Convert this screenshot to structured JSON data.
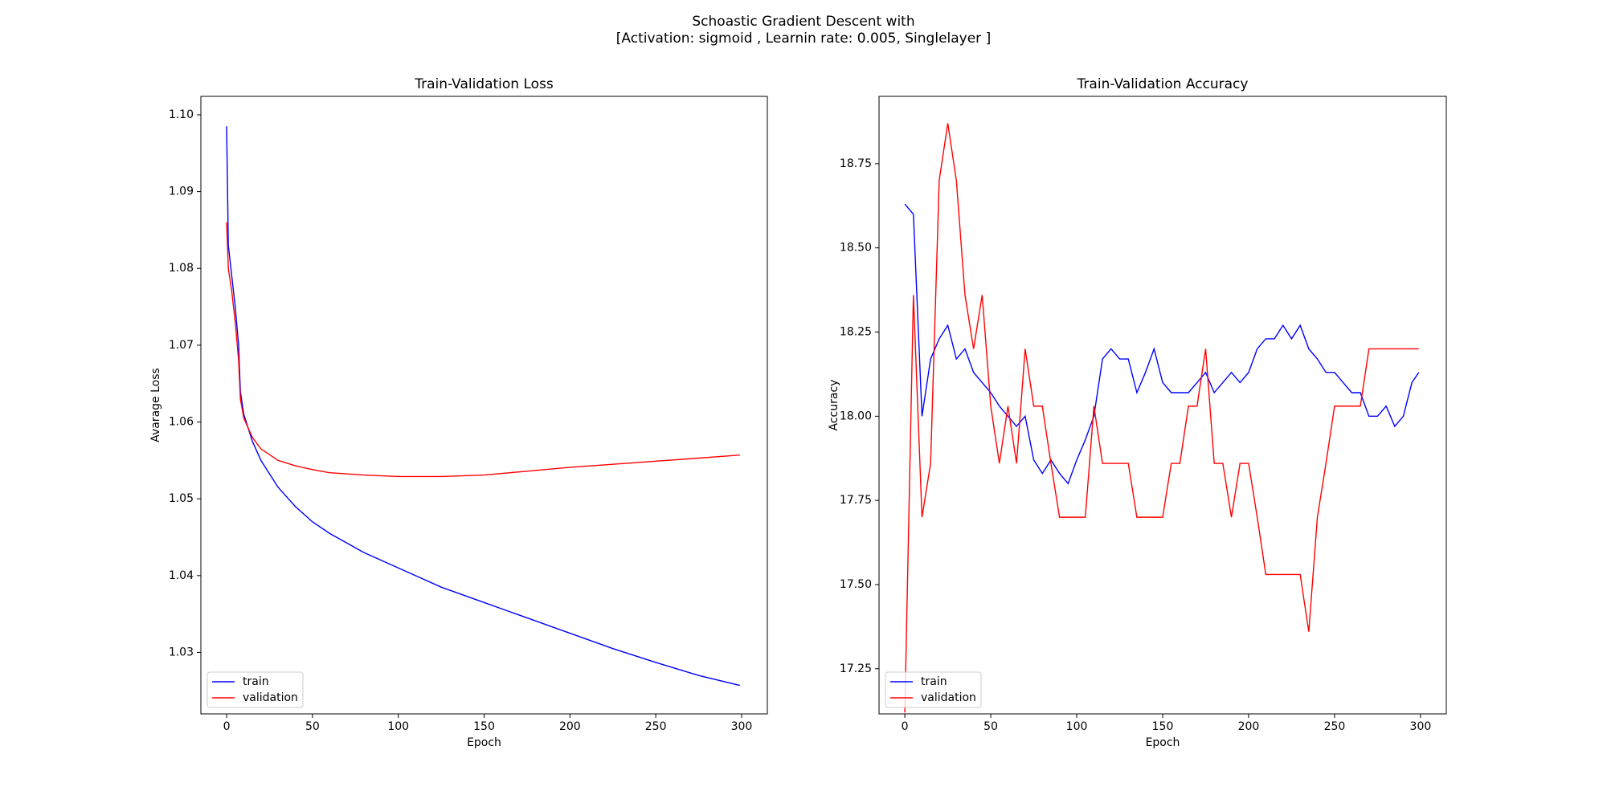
{
  "title": [
    "Schoastic Gradient Descent with",
    "[Activation: sigmoid , Learnin rate: 0.005, Singlelayer ]"
  ],
  "chart_data": [
    {
      "type": "line",
      "title": "Train-Validation Loss",
      "xlabel": "Epoch",
      "ylabel": "Avarage Loss",
      "x": [
        0,
        1,
        3,
        5,
        7,
        8,
        10,
        15,
        20,
        30,
        40,
        50,
        60,
        80,
        100,
        125,
        150,
        175,
        200,
        225,
        250,
        275,
        299
      ],
      "series": [
        {
          "name": "train",
          "color": "#0000ff",
          "values": [
            1.0985,
            1.083,
            1.079,
            1.075,
            1.07,
            1.064,
            1.061,
            1.0575,
            1.055,
            1.0515,
            1.049,
            1.047,
            1.0455,
            1.043,
            1.041,
            1.0385,
            1.0365,
            1.0345,
            1.0325,
            1.0305,
            1.0287,
            1.027,
            1.0257
          ]
        },
        {
          "name": "validation",
          "color": "#ff0000",
          "values": [
            1.086,
            1.08,
            1.077,
            1.073,
            1.068,
            1.063,
            1.0605,
            1.058,
            1.0565,
            1.055,
            1.0543,
            1.0538,
            1.0534,
            1.0531,
            1.0529,
            1.0529,
            1.0531,
            1.0536,
            1.0541,
            1.0545,
            1.0549,
            1.0553,
            1.0557
          ]
        }
      ],
      "xlim": [
        -15,
        315
      ],
      "xticks": [
        0,
        50,
        100,
        150,
        200,
        250,
        300
      ],
      "ylim": [
        1.022,
        1.1024
      ],
      "yticks": [
        1.03,
        1.04,
        1.05,
        1.06,
        1.07,
        1.08,
        1.09,
        {
          "value": 1.1,
          "label": "1.10"
        }
      ],
      "legend": "lower left"
    },
    {
      "type": "line",
      "title": "Train-Validation Accuracy",
      "xlabel": "Epoch",
      "ylabel": "Accuracy",
      "x": [
        0,
        5,
        10,
        15,
        20,
        25,
        30,
        35,
        40,
        45,
        50,
        55,
        60,
        65,
        70,
        75,
        80,
        85,
        90,
        95,
        100,
        105,
        110,
        115,
        120,
        125,
        130,
        135,
        140,
        145,
        150,
        155,
        160,
        165,
        170,
        175,
        180,
        185,
        190,
        195,
        200,
        205,
        210,
        215,
        220,
        225,
        230,
        235,
        240,
        245,
        250,
        255,
        260,
        265,
        270,
        275,
        280,
        285,
        290,
        295,
        299
      ],
      "series": [
        {
          "name": "train",
          "color": "#0000ff",
          "values": [
            18.63,
            18.6,
            18.0,
            18.17,
            18.23,
            18.27,
            18.17,
            18.2,
            18.13,
            18.1,
            18.07,
            18.03,
            18.0,
            17.97,
            18.0,
            17.87,
            17.83,
            17.87,
            17.83,
            17.8,
            17.87,
            17.93,
            18.0,
            18.17,
            18.2,
            18.17,
            18.17,
            18.07,
            18.13,
            18.2,
            18.1,
            18.07,
            18.07,
            18.07,
            18.1,
            18.13,
            18.07,
            18.1,
            18.13,
            18.1,
            18.13,
            18.2,
            18.23,
            18.23,
            18.27,
            18.23,
            18.27,
            18.2,
            18.17,
            18.13,
            18.13,
            18.1,
            18.07,
            18.07,
            18.0,
            18.0,
            18.03,
            17.97,
            18.0,
            18.1,
            18.13
          ]
        },
        {
          "name": "validation",
          "color": "#ff0000",
          "values": [
            17.12,
            18.36,
            17.7,
            17.86,
            18.7,
            18.87,
            18.7,
            18.36,
            18.2,
            18.36,
            18.03,
            17.86,
            18.03,
            17.86,
            18.2,
            18.03,
            18.03,
            17.86,
            17.7,
            17.7,
            17.7,
            17.7,
            18.03,
            17.86,
            17.86,
            17.86,
            17.86,
            17.7,
            17.7,
            17.7,
            17.7,
            17.86,
            17.86,
            18.03,
            18.03,
            18.2,
            17.86,
            17.86,
            17.7,
            17.86,
            17.86,
            17.7,
            17.53,
            17.53,
            17.53,
            17.53,
            17.53,
            17.36,
            17.7,
            17.86,
            18.03,
            18.03,
            18.03,
            18.03,
            18.2,
            18.2,
            18.2,
            18.2,
            18.2,
            18.2,
            18.2
          ]
        }
      ],
      "xlim": [
        -15,
        315
      ],
      "xticks": [
        0,
        50,
        100,
        150,
        200,
        250,
        300
      ],
      "ylim": [
        17.116,
        18.95
      ],
      "yticks": [
        17.25,
        {
          "value": 17.5,
          "label": "17.50"
        },
        17.75,
        {
          "value": 18,
          "label": "18.00"
        },
        18.25,
        {
          "value": 18.5,
          "label": "18.50"
        },
        18.75
      ],
      "legend": "lower left"
    }
  ]
}
